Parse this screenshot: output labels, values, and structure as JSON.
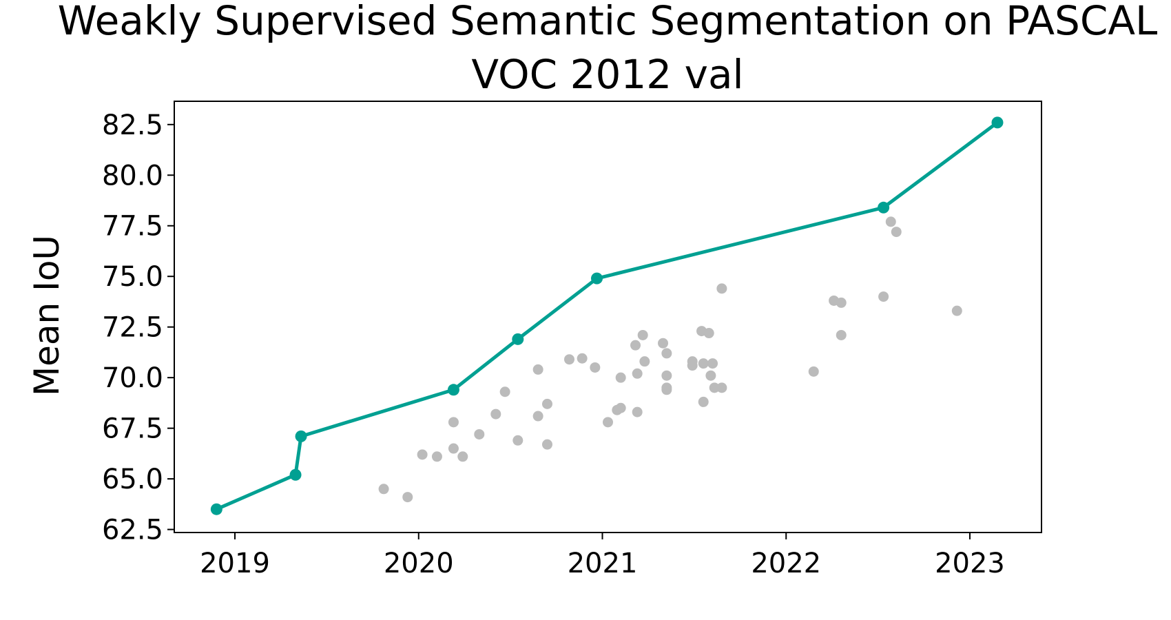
{
  "chart_data": {
    "type": "scatter",
    "title_lines": [
      "Weakly Supervised Semantic Segmentation on PASCAL",
      "VOC 2012 val"
    ],
    "xlabel": "",
    "ylabel": "Mean IoU",
    "xlim": [
      2018.67,
      2023.39
    ],
    "ylim": [
      62.35,
      83.65
    ],
    "x_ticks": [
      2019,
      2020,
      2021,
      2022,
      2023
    ],
    "x_tick_labels": [
      "2019",
      "2020",
      "2021",
      "2022",
      "2023"
    ],
    "y_ticks": [
      62.5,
      65.0,
      67.5,
      70.0,
      72.5,
      75.0,
      77.5,
      80.0,
      82.5
    ],
    "y_tick_labels": [
      "62.5",
      "65.0",
      "67.5",
      "70.0",
      "72.5",
      "75.0",
      "77.5",
      "80.0",
      "82.5"
    ],
    "grid": false,
    "legend": "none",
    "colors": {
      "frontier": "#00a092",
      "others": "#bbbbbb"
    },
    "series": [
      {
        "role": "frontier",
        "style": "line-with-markers",
        "points": [
          [
            2018.9,
            63.5
          ],
          [
            2019.33,
            65.2
          ],
          [
            2019.36,
            67.1
          ],
          [
            2020.19,
            69.4
          ],
          [
            2020.54,
            71.9
          ],
          [
            2020.97,
            74.9
          ],
          [
            2022.53,
            78.4
          ],
          [
            2023.15,
            82.6
          ]
        ]
      },
      {
        "role": "others",
        "style": "markers",
        "points": [
          [
            2019.81,
            64.5
          ],
          [
            2019.94,
            64.1
          ],
          [
            2020.02,
            66.2
          ],
          [
            2020.1,
            66.1
          ],
          [
            2020.19,
            67.8
          ],
          [
            2020.19,
            66.5
          ],
          [
            2020.24,
            66.1
          ],
          [
            2020.33,
            67.2
          ],
          [
            2020.42,
            68.2
          ],
          [
            2020.47,
            69.3
          ],
          [
            2020.54,
            66.9
          ],
          [
            2020.65,
            70.4
          ],
          [
            2020.65,
            68.1
          ],
          [
            2020.7,
            68.7
          ],
          [
            2020.7,
            66.7
          ],
          [
            2020.82,
            70.9
          ],
          [
            2020.89,
            70.95
          ],
          [
            2020.96,
            70.5
          ],
          [
            2021.03,
            67.8
          ],
          [
            2021.08,
            68.4
          ],
          [
            2021.1,
            68.5
          ],
          [
            2021.1,
            70.0
          ],
          [
            2021.18,
            71.6
          ],
          [
            2021.19,
            70.2
          ],
          [
            2021.19,
            68.3
          ],
          [
            2021.22,
            72.1
          ],
          [
            2021.23,
            70.8
          ],
          [
            2021.33,
            71.7
          ],
          [
            2021.35,
            71.2
          ],
          [
            2021.35,
            70.1
          ],
          [
            2021.35,
            69.5
          ],
          [
            2021.35,
            69.4
          ],
          [
            2021.49,
            70.8
          ],
          [
            2021.49,
            70.6
          ],
          [
            2021.54,
            72.3
          ],
          [
            2021.55,
            70.7
          ],
          [
            2021.55,
            68.8
          ],
          [
            2021.58,
            72.2
          ],
          [
            2021.59,
            70.1
          ],
          [
            2021.6,
            70.7
          ],
          [
            2021.61,
            69.5
          ],
          [
            2021.65,
            74.4
          ],
          [
            2021.65,
            69.5
          ],
          [
            2022.15,
            70.3
          ],
          [
            2022.26,
            73.8
          ],
          [
            2022.3,
            73.7
          ],
          [
            2022.3,
            72.1
          ],
          [
            2022.53,
            74.0
          ],
          [
            2022.57,
            77.7
          ],
          [
            2022.6,
            77.2
          ],
          [
            2022.93,
            73.3
          ]
        ]
      }
    ]
  }
}
